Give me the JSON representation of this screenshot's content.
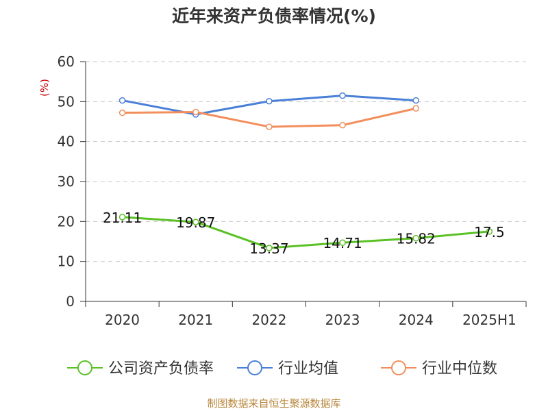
{
  "title": "近年来资产负债率情况(%)",
  "source": "制图数据来自恒生聚源数据库",
  "chart_data": {
    "type": "line",
    "title": "近年来资产负债率情况(%)",
    "ylabel": "(%)",
    "xlabel": "",
    "categories": [
      "2020",
      "2021",
      "2022",
      "2023",
      "2024",
      "2025H1"
    ],
    "ylim": [
      0,
      60
    ],
    "yticks": [
      0,
      10,
      20,
      30,
      40,
      50,
      60
    ],
    "grid": true,
    "legend_position": "bottom",
    "series": [
      {
        "name": "公司资产负债率",
        "color": "#5ac125",
        "values": [
          21.11,
          19.87,
          13.37,
          14.71,
          15.82,
          17.5
        ],
        "labels": [
          "21.11",
          "19.87",
          "13.37",
          "14.71",
          "15.82",
          "17.5"
        ]
      },
      {
        "name": "行业均值",
        "color": "#4a7fd8",
        "values": [
          50.3,
          46.8,
          50.1,
          51.5,
          50.3,
          null
        ]
      },
      {
        "name": "行业中位数",
        "color": "#f28e5c",
        "values": [
          47.2,
          47.4,
          43.7,
          44.1,
          48.3,
          null
        ]
      }
    ]
  }
}
